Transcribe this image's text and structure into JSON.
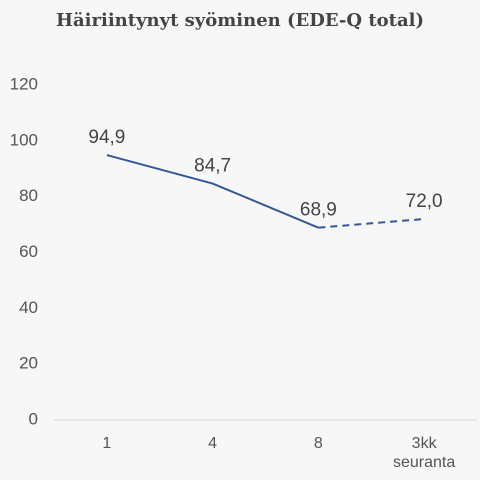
{
  "chart_data": {
    "type": "line",
    "title": "Häiriintynyt syöminen (EDE-Q total)",
    "categories": [
      "1",
      "4",
      "8",
      "3kk seuranta"
    ],
    "series": [
      {
        "color": "#34589a",
        "dash": "solid",
        "values": [
          94.9,
          84.7,
          68.9,
          null
        ],
        "value_labels": [
          "94,9",
          "84,7",
          "68,9",
          null
        ]
      },
      {
        "color": "#34589a",
        "dash": "dashed",
        "values": [
          null,
          null,
          68.9,
          72.0
        ],
        "value_labels": [
          null,
          null,
          null,
          "72,0"
        ]
      }
    ],
    "ylim": [
      0,
      120
    ],
    "yticks": [
      0,
      20,
      40,
      60,
      80,
      100,
      120
    ],
    "grid": false
  }
}
